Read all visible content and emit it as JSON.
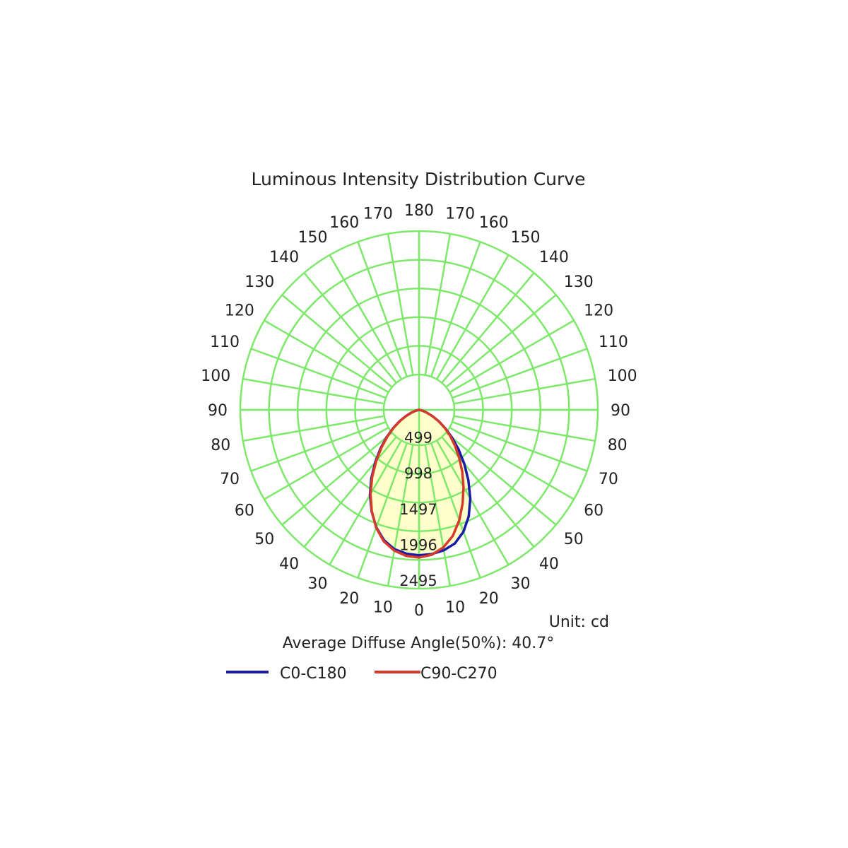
{
  "chart_data": {
    "type": "polar",
    "title": "Luminous Intensity Distribution Curve",
    "unit_label": "Unit: cd",
    "annotation": "Average Diffuse Angle(50%): 40.7°",
    "radial_ticks": [
      499,
      998,
      1497,
      1996,
      2495
    ],
    "r_max": 2495,
    "angle_ticks_left": [
      0,
      10,
      20,
      30,
      40,
      50,
      60,
      70,
      80,
      90,
      100,
      110,
      120,
      130,
      140,
      150,
      160,
      170,
      180
    ],
    "angle_ticks_right": [
      10,
      20,
      30,
      40,
      50,
      60,
      70,
      80,
      90,
      100,
      110,
      120,
      130,
      140,
      150,
      160,
      170
    ],
    "grid": true,
    "legend_position": "bottom",
    "colors": {
      "grid": "#7de86a",
      "fill": "#ffffcc",
      "C0-C180": "#1a1aa8",
      "C90-C270": "#d63a2a"
    },
    "series": [
      {
        "name": "C0-C180",
        "angles": [
          0,
          5,
          10,
          15,
          20,
          25,
          30,
          35,
          40,
          45,
          50,
          55,
          60,
          65,
          70,
          75,
          80,
          85,
          90
        ],
        "left": [
          2030,
          2015,
          1975,
          1885,
          1745,
          1565,
          1370,
          1160,
          950,
          760,
          590,
          440,
          310,
          200,
          115,
          55,
          20,
          5,
          0
        ],
        "right": [
          2030,
          2020,
          1990,
          1930,
          1810,
          1640,
          1430,
          1200,
          980,
          780,
          600,
          445,
          315,
          205,
          120,
          58,
          22,
          6,
          0
        ]
      },
      {
        "name": "C90-C270",
        "angles": [
          0,
          5,
          10,
          15,
          20,
          25,
          30,
          35,
          40,
          45,
          50,
          55,
          60,
          65,
          70,
          75,
          80,
          85,
          90
        ],
        "left": [
          2060,
          2045,
          1995,
          1900,
          1750,
          1560,
          1355,
          1140,
          930,
          740,
          575,
          430,
          300,
          195,
          110,
          52,
          18,
          5,
          0
        ],
        "right": [
          2060,
          2030,
          1950,
          1820,
          1640,
          1440,
          1240,
          1050,
          870,
          710,
          570,
          440,
          315,
          205,
          120,
          58,
          22,
          6,
          0
        ]
      }
    ]
  }
}
